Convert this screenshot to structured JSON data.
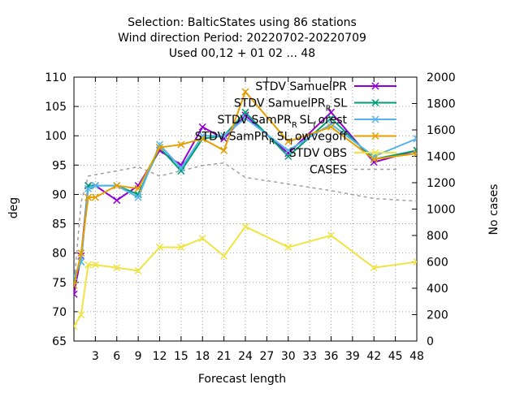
{
  "chart_data": {
    "type": "line",
    "title": [
      "Selection: BalticStates using    86 stations",
      "Wind direction   Period: 20220702-20220709",
      "Used  00,12  + 01 02 ... 48"
    ],
    "xlabel": "Forecast length",
    "ylabel": "deg",
    "y2label": "No cases",
    "xlim": [
      0,
      48
    ],
    "ylim": [
      65,
      110
    ],
    "y2lim": [
      0,
      2000
    ],
    "xticks": [
      3,
      6,
      9,
      12,
      15,
      18,
      21,
      24,
      27,
      30,
      33,
      36,
      39,
      42,
      45,
      48
    ],
    "yticks": [
      65,
      70,
      75,
      80,
      85,
      90,
      95,
      100,
      105,
      110
    ],
    "y2ticks": [
      0,
      200,
      400,
      600,
      800,
      1000,
      1200,
      1400,
      1600,
      1800,
      2000
    ],
    "grid": true,
    "legend_position": "top-right",
    "series": [
      {
        "name": "STDV SamuelPR",
        "color": "#9400d3",
        "marker": "x",
        "axis": "y1",
        "x": [
          0,
          1,
          2,
          3,
          6,
          9,
          12,
          15,
          18,
          21,
          24,
          30,
          36,
          42,
          48
        ],
        "y": [
          73,
          79.5,
          91.5,
          91.5,
          89,
          91.5,
          97.5,
          95,
          101.5,
          99.5,
          103.5,
          97,
          104,
          95.5,
          97.5
        ]
      },
      {
        "name": "STDV SamuelPR_R SL",
        "color": "#009e73",
        "marker": "x",
        "axis": "y1",
        "x": [
          0,
          1,
          2,
          3,
          6,
          9,
          12,
          15,
          18,
          21,
          24,
          30,
          36,
          42,
          48
        ],
        "y": [
          75.5,
          78.5,
          91.5,
          91.5,
          91.5,
          90,
          98,
          94,
          99.5,
          100,
          104,
          96.5,
          103,
          96,
          97.5
        ]
      },
      {
        "name": "STDV SamPR_R SL_forest",
        "color": "#56b4e9",
        "marker": "x",
        "axis": "y1",
        "x": [
          0,
          1,
          2,
          3,
          6,
          9,
          12,
          15,
          18,
          21,
          24,
          30,
          36,
          42,
          48
        ],
        "y": [
          76,
          78.5,
          91,
          91.5,
          91.5,
          89.5,
          98.5,
          94.5,
          100,
          100,
          103,
          97.5,
          102,
          96.5,
          99.5
        ]
      },
      {
        "name": "STDV SamPR_R SL_lowvegoff",
        "color": "#e69f00",
        "marker": "x",
        "axis": "y1",
        "x": [
          0,
          1,
          2,
          3,
          6,
          9,
          12,
          15,
          18,
          21,
          24,
          30,
          36,
          42,
          48
        ],
        "y": [
          74.5,
          80,
          89.5,
          89.5,
          91.5,
          91,
          98,
          98.5,
          99.5,
          97.5,
          107.5,
          99,
          101.5,
          96,
          97
        ]
      },
      {
        "name": "STDV OBS",
        "color": "#f0e442",
        "marker": "x",
        "axis": "y1",
        "x": [
          0,
          1,
          2,
          3,
          6,
          9,
          12,
          15,
          18,
          21,
          24,
          30,
          36,
          42,
          48
        ],
        "y": [
          67.5,
          69.5,
          78,
          78,
          77.5,
          77,
          81,
          81,
          82.5,
          79.5,
          84.5,
          81,
          83,
          77.5,
          78.5
        ]
      },
      {
        "name": "CASES",
        "color": "#a0a0a0",
        "marker": "none",
        "dashed": true,
        "axis": "y2",
        "x": [
          0,
          1,
          2,
          3,
          6,
          9,
          12,
          15,
          18,
          21,
          24,
          30,
          36,
          42,
          48
        ],
        "y": [
          420,
          1050,
          1250,
          1260,
          1290,
          1320,
          1250,
          1290,
          1330,
          1350,
          1240,
          1190,
          1140,
          1080,
          1060
        ]
      }
    ]
  }
}
